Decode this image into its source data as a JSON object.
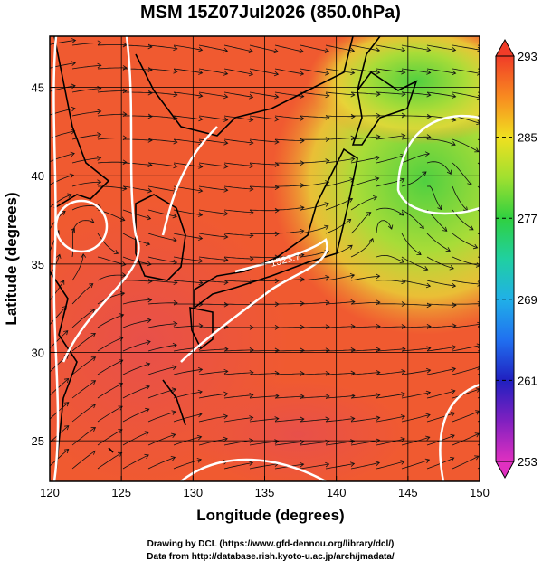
{
  "map": {
    "title": "MSM 15Z07Jul2026 (850.0hPa)",
    "x_label": "Longitude (degrees)",
    "y_label": "Latitude  (degrees)",
    "xlim": [
      120,
      150
    ],
    "ylim": [
      22.7,
      47.9
    ],
    "xticks": [
      120,
      125,
      130,
      135,
      140,
      145,
      150
    ],
    "yticks": [
      25,
      30,
      35,
      40,
      45
    ],
    "colorbar": {
      "lim": [
        253,
        293
      ],
      "ticks": [
        253,
        261,
        269,
        277,
        285,
        293
      ]
    },
    "contour_label": "1523.7",
    "credits": [
      "Drawing by DCL (https://www.gfd-dennou.org/library/dcl/)",
      "Data from http://database.rish.kyoto-u.ac.jp/arch/jmadata/"
    ]
  }
}
